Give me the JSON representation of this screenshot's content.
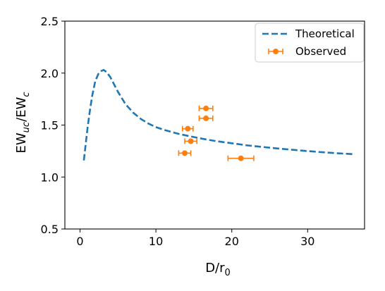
{
  "chart_data": {
    "type": "scatter",
    "xlabel_main": "D/r",
    "xlabel_sub": "0",
    "ylabel_main1": "EW",
    "ylabel_sub1": "uc",
    "ylabel_main2": "/EW",
    "ylabel_sub2": "c",
    "xlim": [
      -2,
      37.5
    ],
    "ylim": [
      0.5,
      2.5
    ],
    "xticks": [
      0,
      10,
      20,
      30
    ],
    "yticks": [
      0.5,
      1.0,
      1.5,
      2.0,
      2.5
    ],
    "xtick_labels": [
      "0",
      "10",
      "20",
      "30"
    ],
    "ytick_labels": [
      "0.5",
      "1.0",
      "1.5",
      "2.0",
      "2.5"
    ],
    "grid": false,
    "legend_position": "top-right",
    "series": [
      {
        "name": "Theoretical",
        "style": "dashed-line",
        "color": "#1f77b4",
        "x": [
          0.5,
          0.8,
          1.0,
          1.3,
          1.6,
          2.0,
          2.4,
          2.8,
          3.1,
          3.5,
          4.0,
          4.5,
          5.0,
          5.5,
          6.0,
          6.5,
          7.0,
          7.5,
          8.0,
          9.0,
          10.0,
          11.0,
          12.0,
          13.0,
          14.0,
          15.0,
          16.0,
          18.0,
          20.0,
          22.0,
          24.0,
          26.0,
          28.0,
          30.0,
          32.0,
          34.0,
          36.0
        ],
        "y": [
          1.16,
          1.35,
          1.48,
          1.64,
          1.78,
          1.92,
          1.99,
          2.02,
          2.03,
          2.01,
          1.96,
          1.89,
          1.82,
          1.76,
          1.7,
          1.66,
          1.62,
          1.59,
          1.56,
          1.515,
          1.48,
          1.455,
          1.435,
          1.415,
          1.4,
          1.385,
          1.37,
          1.345,
          1.325,
          1.305,
          1.29,
          1.275,
          1.262,
          1.25,
          1.238,
          1.228,
          1.22
        ]
      },
      {
        "name": "Observed",
        "style": "points-with-xerr",
        "color": "#ff7f0e",
        "points": [
          {
            "x": 16.6,
            "y": 1.66,
            "xerr": 0.9
          },
          {
            "x": 16.6,
            "y": 1.565,
            "xerr": 0.9
          },
          {
            "x": 14.2,
            "y": 1.465,
            "xerr": 0.7
          },
          {
            "x": 14.6,
            "y": 1.345,
            "xerr": 0.8
          },
          {
            "x": 13.8,
            "y": 1.23,
            "xerr": 0.8
          },
          {
            "x": 21.2,
            "y": 1.18,
            "xerr": 1.7
          }
        ]
      }
    ]
  }
}
